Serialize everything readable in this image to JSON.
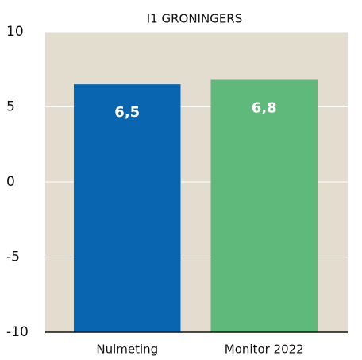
{
  "chart_data": {
    "type": "bar",
    "title": "I1  GRONINGERS",
    "categories": [
      "Nulmeting",
      "Monitor 2022"
    ],
    "values": [
      6.5,
      6.8
    ],
    "value_labels": [
      "6,5",
      "6,8"
    ],
    "colors": [
      "#0a65b0",
      "#5eb97b"
    ],
    "ylim": [
      -10,
      10
    ],
    "yticks": [
      -10,
      -5,
      0,
      5,
      10
    ],
    "grid": true
  }
}
